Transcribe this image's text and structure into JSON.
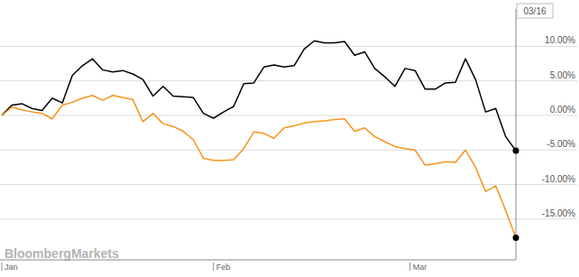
{
  "chart_data": {
    "type": "line",
    "annotation": "03/16",
    "source": "BloombergMarkets",
    "x": [
      0,
      1,
      2,
      3,
      4,
      5,
      6,
      7,
      8,
      9,
      10,
      11,
      12,
      13,
      14,
      15,
      16,
      17,
      18,
      19,
      20,
      21,
      22,
      23,
      24,
      25,
      26,
      27,
      28,
      29,
      30,
      31,
      32,
      33,
      34,
      35,
      36,
      37,
      38,
      39,
      40,
      41,
      42,
      43,
      44,
      45,
      46,
      47,
      48,
      49,
      50,
      51
    ],
    "xlim": [
      0,
      51
    ],
    "xticks": [
      {
        "value": 0,
        "label": "Jan"
      },
      {
        "value": 21,
        "label": "Feb"
      },
      {
        "value": 40.5,
        "label": "Mar"
      }
    ],
    "ylim": [
      -20.9,
      15.4
    ],
    "yticks": [
      {
        "value": -15,
        "label": "-15.00%"
      },
      {
        "value": -10,
        "label": "-10.00%"
      },
      {
        "value": -5,
        "label": "-5.00%"
      },
      {
        "value": 0,
        "label": "0.00%"
      },
      {
        "value": 5,
        "label": "5.00%"
      },
      {
        "value": 10,
        "label": "10.00%"
      }
    ],
    "grid": true,
    "series": [
      {
        "color": "#000000",
        "marker": "end",
        "values": [
          0,
          1.5,
          1.7,
          1.0,
          0.7,
          2.5,
          1.8,
          5.8,
          7.2,
          8.2,
          6.6,
          6.3,
          6.5,
          6.0,
          5.2,
          2.8,
          4.2,
          2.8,
          2.7,
          2.6,
          0.3,
          -0.4,
          0.5,
          1.3,
          4.6,
          4.7,
          7.0,
          7.3,
          7.0,
          7.2,
          9.6,
          10.8,
          10.5,
          10.5,
          10.7,
          8.7,
          9.2,
          6.8,
          5.6,
          4.2,
          6.8,
          6.5,
          3.8,
          3.8,
          4.7,
          4.8,
          8.2,
          5.2,
          0.5,
          1.0,
          -3.1,
          -5.1
        ]
      },
      {
        "color": "#f7941d",
        "marker": "end",
        "values": [
          0,
          1.2,
          0.8,
          0.5,
          0.3,
          -0.5,
          1.5,
          1.9,
          2.5,
          2.9,
          2.2,
          2.9,
          2.6,
          2.3,
          -0.9,
          0.3,
          -1.2,
          -1.6,
          -2.3,
          -3.5,
          -6.2,
          -6.5,
          -6.5,
          -6.4,
          -4.8,
          -2.4,
          -2.6,
          -3.3,
          -1.8,
          -1.5,
          -1.1,
          -0.9,
          -0.8,
          -0.6,
          -0.5,
          -2.3,
          -1.8,
          -3.1,
          -3.8,
          -4.5,
          -4.8,
          -5.0,
          -7.2,
          -7.0,
          -6.7,
          -6.8,
          -5.0,
          -7.5,
          -11.0,
          -10.2,
          -13.8,
          -17.7
        ]
      }
    ]
  }
}
